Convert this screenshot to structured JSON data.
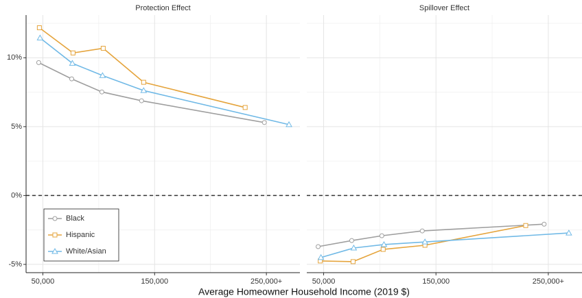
{
  "chart_data": [
    {
      "type": "line",
      "title": "Protection Effect",
      "xlabel": "Average Homeowner Household Income (2019 $)",
      "xlim": [
        35000,
        280000
      ],
      "ylim": [
        -5.6,
        13.1
      ],
      "xticks": [
        {
          "value": 50000,
          "label": "50,000"
        },
        {
          "value": 150000,
          "label": "150,000"
        },
        {
          "value": 250000,
          "label": "250,000+"
        }
      ],
      "yticks": [
        {
          "value": -5,
          "label": "-5%"
        },
        {
          "value": 0,
          "label": "0%"
        },
        {
          "value": 5,
          "label": "5%"
        },
        {
          "value": 10,
          "label": "10%"
        }
      ],
      "x_minor_grid": [
        100000,
        200000
      ],
      "y_minor_grid": [
        -2.5,
        2.5,
        7.5,
        12.5
      ],
      "grid": true,
      "hline": 0,
      "legend": "bottom-left",
      "series": [
        {
          "name": "Black",
          "color": "#9e9e9e",
          "marker": "circle",
          "x": [
            46300,
            75800,
            102800,
            138300,
            248200
          ],
          "values": [
            9.65,
            8.47,
            7.52,
            6.88,
            5.3
          ]
        },
        {
          "name": "Hispanic",
          "color": "#e5a43c",
          "marker": "square",
          "x": [
            46900,
            77000,
            104000,
            140200,
            231000
          ],
          "values": [
            12.18,
            10.35,
            10.69,
            8.22,
            6.39
          ]
        },
        {
          "name": "White/Asian",
          "color": "#70b9e6",
          "marker": "triangle",
          "x": [
            47500,
            76400,
            103400,
            140200,
            270200
          ],
          "values": [
            11.44,
            9.6,
            8.71,
            7.62,
            5.15
          ]
        }
      ]
    },
    {
      "type": "line",
      "title": "Spillover Effect",
      "xlim": [
        35000,
        280000
      ],
      "ylim": [
        -5.6,
        13.1
      ],
      "xticks": [
        {
          "value": 50000,
          "label": "50,000"
        },
        {
          "value": 150000,
          "label": "150,000"
        },
        {
          "value": 250000,
          "label": "250,000+"
        }
      ],
      "yticks": [
        -5,
        0,
        5,
        10
      ],
      "x_minor_grid": [
        100000,
        200000
      ],
      "y_minor_grid": [
        -2.5,
        2.5,
        7.5,
        12.5
      ],
      "grid": true,
      "hline": 0,
      "series": [
        {
          "name": "Black",
          "color": "#9e9e9e",
          "marker": "circle",
          "x": [
            45100,
            75000,
            101800,
            137800,
            246300
          ],
          "values": [
            -3.71,
            -3.27,
            -2.92,
            -2.57,
            -2.08
          ]
        },
        {
          "name": "Hispanic",
          "color": "#e5a43c",
          "marker": "square",
          "x": [
            47000,
            76200,
            103000,
            140200,
            229900
          ],
          "values": [
            -4.75,
            -4.8,
            -3.91,
            -3.61,
            -2.18
          ]
        },
        {
          "name": "White/Asian",
          "color": "#70b9e6",
          "marker": "triangle",
          "x": [
            47600,
            76800,
            103700,
            140200,
            268300
          ],
          "values": [
            -4.5,
            -3.81,
            -3.56,
            -3.37,
            -2.72
          ]
        }
      ]
    }
  ]
}
